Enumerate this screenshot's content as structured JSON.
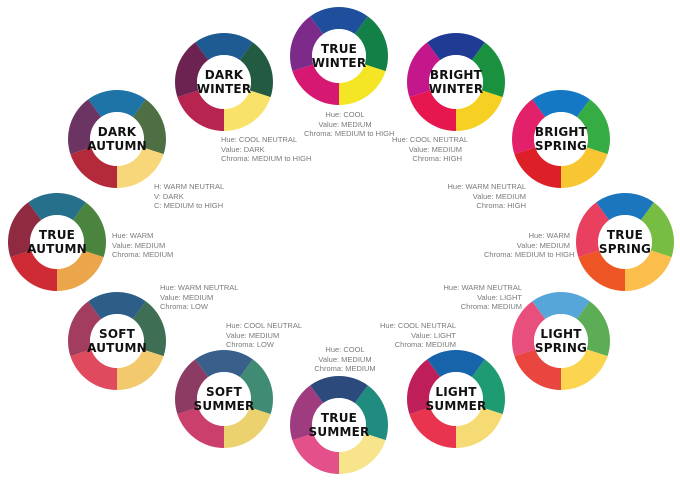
{
  "seasons": [
    {
      "id": "true-winter",
      "line1": "TRUE",
      "line2": "WINTER",
      "colors": [
        "#1f4f9c",
        "#138048",
        "#f4e624",
        "#d71872",
        "#7d2b8a"
      ],
      "desc": [
        "Hue: COOL",
        "Value: MEDIUM",
        "Chroma: MEDIUM to HIGH"
      ]
    },
    {
      "id": "dark-winter",
      "line1": "DARK",
      "line2": "WINTER",
      "colors": [
        "#1e5b93",
        "#235b42",
        "#f8e26a",
        "#b7244f",
        "#6d2352"
      ],
      "desc": [
        "Hue: COOL NEUTRAL",
        "Value: DARK",
        "Chroma: MEDIUM to HIGH"
      ]
    },
    {
      "id": "bright-winter",
      "line1": "BRIGHT",
      "line2": "WINTER",
      "colors": [
        "#1f3b93",
        "#19913f",
        "#f6d123",
        "#e5174e",
        "#c5178c"
      ],
      "desc": [
        "Hue: COOL NEUTRAL",
        "Value: MEDIUM",
        "Chroma: HIGH"
      ]
    },
    {
      "id": "dark-autumn",
      "line1": "DARK",
      "line2": "AUTUMN",
      "colors": [
        "#1e73a7",
        "#4e6e43",
        "#f7d779",
        "#b52a3a",
        "#6c3462"
      ],
      "desc": [
        "H: WARM NEUTRAL",
        "V: DARK",
        "C: MEDIUM to HIGH"
      ]
    },
    {
      "id": "bright-spring",
      "line1": "BRIGHT",
      "line2": "SPRING",
      "colors": [
        "#1478c4",
        "#36ac44",
        "#f9c633",
        "#dd2027",
        "#e3206a"
      ],
      "desc": [
        "Hue: WARM NEUTRAL",
        "Value: MEDIUM",
        "Chroma: HIGH"
      ]
    },
    {
      "id": "true-autumn",
      "line1": "TRUE",
      "line2": "AUTUMN",
      "colors": [
        "#26708b",
        "#4a843f",
        "#eba54b",
        "#ce2b34",
        "#8f2a40"
      ],
      "desc": [
        "Hue: WARM",
        "Value: MEDIUM",
        "Chroma: MEDIUM"
      ]
    },
    {
      "id": "true-spring",
      "line1": "TRUE",
      "line2": "SPRING",
      "colors": [
        "#1b76be",
        "#78bd43",
        "#fbbd4c",
        "#ed5624",
        "#e8405e"
      ],
      "desc": [
        "Hue: WARM",
        "Value: MEDIUM",
        "Chroma: MEDIUM to HIGH"
      ]
    },
    {
      "id": "soft-autumn",
      "line1": "SOFT",
      "line2": "AUTUMN",
      "colors": [
        "#2c5e88",
        "#3e6e54",
        "#f3c96d",
        "#df4a5e",
        "#a23d60"
      ],
      "desc": [
        "Hue: WARM NEUTRAL",
        "Value: MEDIUM",
        "Chroma: LOW"
      ]
    },
    {
      "id": "light-spring",
      "line1": "LIGHT",
      "line2": "SPRING",
      "colors": [
        "#56a6d9",
        "#5cad55",
        "#fbd54f",
        "#e8463f",
        "#e94f7c"
      ],
      "desc": [
        "Hue: WARM NEUTRAL",
        "Value: LIGHT",
        "Chroma: MEDIUM"
      ]
    },
    {
      "id": "soft-summer",
      "line1": "SOFT",
      "line2": "SUMMER",
      "colors": [
        "#395f8b",
        "#3f8b74",
        "#ecd26f",
        "#cb3f6c",
        "#8c3b63"
      ],
      "desc": [
        "Hue: COOL NEUTRAL",
        "Value: MEDIUM",
        "Chroma: LOW"
      ]
    },
    {
      "id": "light-summer",
      "line1": "LIGHT",
      "line2": "SUMMER",
      "colors": [
        "#1864ab",
        "#1e9b73",
        "#f6da73",
        "#e8344e",
        "#bf1f59"
      ],
      "desc": [
        "Hue: COOL NEUTRAL",
        "Value: LIGHT",
        "Chroma: MEDIUM"
      ]
    },
    {
      "id": "true-summer",
      "line1": "TRUE",
      "line2": "SUMMER",
      "colors": [
        "#2c4a7c",
        "#1f8c7f",
        "#f7e48b",
        "#e45089",
        "#9f3c80"
      ],
      "desc": [
        "Hue: COOL",
        "Value: MEDIUM",
        "Chroma: MEDIUM"
      ]
    }
  ]
}
